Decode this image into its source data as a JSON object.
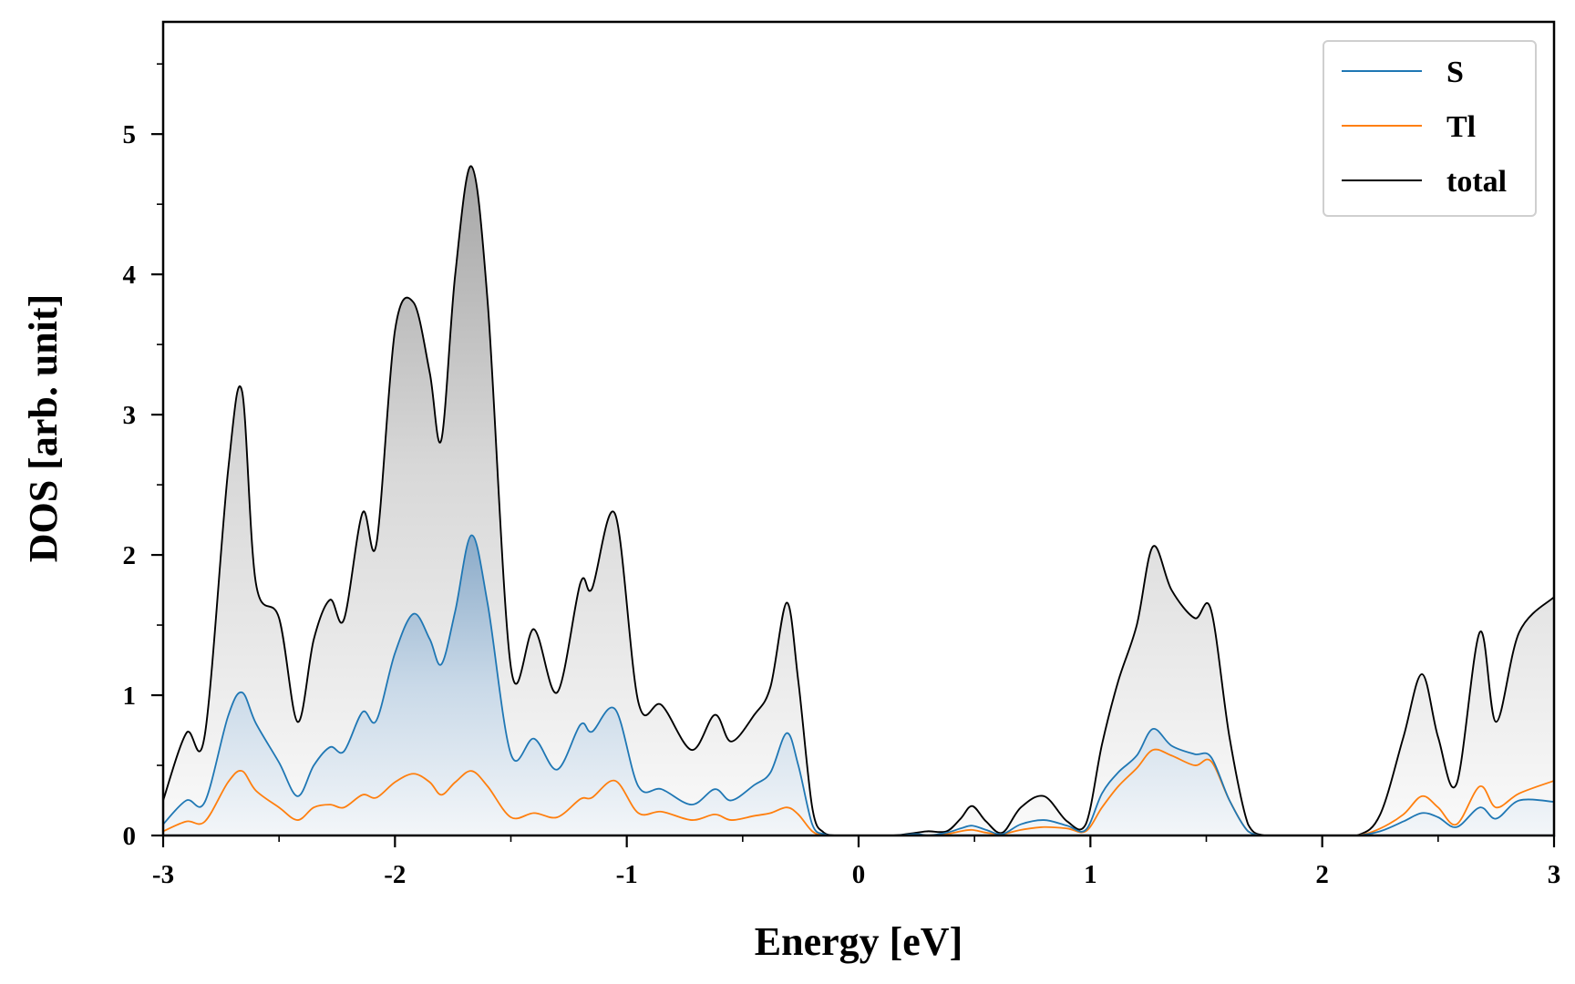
{
  "chart_data": {
    "type": "line",
    "title": "",
    "xlabel": "Energy [eV]",
    "ylabel": "DOS [arb. unit]",
    "xlim": [
      -3,
      3
    ],
    "ylim": [
      0,
      5.8
    ],
    "x_ticks": [
      -3,
      -2,
      -1,
      0,
      1,
      2,
      3
    ],
    "x_tick_labels": [
      "-3",
      "-2",
      "-1",
      "0",
      "1",
      "2",
      "3"
    ],
    "y_ticks": [
      0,
      1,
      2,
      3,
      4,
      5
    ],
    "y_tick_labels": [
      "0",
      "1",
      "2",
      "3",
      "4",
      "5"
    ],
    "legend_position": "top-right",
    "series": [
      {
        "name": "S",
        "color": "#1f77b4",
        "x": [
          -3.0,
          -2.9,
          -2.82,
          -2.72,
          -2.66,
          -2.6,
          -2.5,
          -2.42,
          -2.35,
          -2.28,
          -2.22,
          -2.14,
          -2.08,
          -2.0,
          -1.92,
          -1.85,
          -1.8,
          -1.74,
          -1.67,
          -1.6,
          -1.5,
          -1.4,
          -1.3,
          -1.2,
          -1.15,
          -1.05,
          -0.95,
          -0.85,
          -0.72,
          -0.62,
          -0.55,
          -0.45,
          -0.38,
          -0.31,
          -0.26,
          -0.2,
          -0.15,
          -0.1,
          0.0,
          0.15,
          0.25,
          0.3,
          0.38,
          0.44,
          0.49,
          0.55,
          0.62,
          0.7,
          0.8,
          0.9,
          0.98,
          1.05,
          1.12,
          1.2,
          1.27,
          1.35,
          1.45,
          1.52,
          1.6,
          1.68,
          1.75,
          1.85,
          2.0,
          2.15,
          2.25,
          2.35,
          2.43,
          2.5,
          2.58,
          2.68,
          2.75,
          2.85,
          3.0
        ],
        "values": [
          0.08,
          0.25,
          0.24,
          0.85,
          1.02,
          0.8,
          0.52,
          0.28,
          0.5,
          0.63,
          0.6,
          0.88,
          0.82,
          1.3,
          1.58,
          1.4,
          1.22,
          1.6,
          2.14,
          1.65,
          0.58,
          0.69,
          0.47,
          0.79,
          0.74,
          0.9,
          0.35,
          0.33,
          0.22,
          0.33,
          0.25,
          0.36,
          0.45,
          0.73,
          0.5,
          0.08,
          0.01,
          0.0,
          0.0,
          0.0,
          0.01,
          0.0,
          0.02,
          0.05,
          0.07,
          0.04,
          0.01,
          0.08,
          0.11,
          0.07,
          0.04,
          0.3,
          0.45,
          0.57,
          0.76,
          0.64,
          0.58,
          0.56,
          0.25,
          0.03,
          0.0,
          0.0,
          0.0,
          0.0,
          0.03,
          0.1,
          0.16,
          0.13,
          0.06,
          0.2,
          0.12,
          0.25,
          0.24
        ]
      },
      {
        "name": "Tl",
        "color": "#ff7f0e",
        "x": [
          -3.0,
          -2.9,
          -2.82,
          -2.72,
          -2.66,
          -2.6,
          -2.5,
          -2.42,
          -2.35,
          -2.28,
          -2.22,
          -2.14,
          -2.08,
          -2.0,
          -1.92,
          -1.85,
          -1.8,
          -1.74,
          -1.67,
          -1.6,
          -1.5,
          -1.4,
          -1.3,
          -1.2,
          -1.15,
          -1.05,
          -0.95,
          -0.85,
          -0.72,
          -0.62,
          -0.55,
          -0.45,
          -0.38,
          -0.31,
          -0.26,
          -0.2,
          -0.15,
          -0.1,
          0.0,
          0.15,
          0.25,
          0.3,
          0.38,
          0.44,
          0.49,
          0.55,
          0.62,
          0.7,
          0.8,
          0.9,
          0.98,
          1.05,
          1.12,
          1.2,
          1.27,
          1.35,
          1.45,
          1.52,
          1.6,
          1.68,
          1.75,
          1.85,
          2.0,
          2.15,
          2.25,
          2.35,
          2.43,
          2.5,
          2.58,
          2.68,
          2.75,
          2.85,
          3.0
        ],
        "values": [
          0.03,
          0.1,
          0.1,
          0.38,
          0.46,
          0.32,
          0.2,
          0.11,
          0.2,
          0.22,
          0.2,
          0.29,
          0.27,
          0.38,
          0.44,
          0.38,
          0.29,
          0.38,
          0.46,
          0.35,
          0.13,
          0.16,
          0.13,
          0.26,
          0.27,
          0.39,
          0.16,
          0.17,
          0.11,
          0.15,
          0.11,
          0.14,
          0.16,
          0.2,
          0.15,
          0.03,
          0.0,
          0.0,
          0.0,
          0.0,
          0.0,
          0.0,
          0.01,
          0.03,
          0.04,
          0.02,
          0.01,
          0.04,
          0.06,
          0.05,
          0.03,
          0.2,
          0.35,
          0.48,
          0.61,
          0.57,
          0.5,
          0.53,
          0.25,
          0.03,
          0.0,
          0.0,
          0.0,
          0.0,
          0.05,
          0.15,
          0.28,
          0.2,
          0.08,
          0.35,
          0.2,
          0.3,
          0.39
        ]
      },
      {
        "name": "total",
        "color": "#000000",
        "x": [
          -3.0,
          -2.9,
          -2.82,
          -2.72,
          -2.66,
          -2.6,
          -2.5,
          -2.42,
          -2.35,
          -2.28,
          -2.22,
          -2.14,
          -2.08,
          -2.0,
          -1.92,
          -1.85,
          -1.8,
          -1.74,
          -1.67,
          -1.6,
          -1.5,
          -1.4,
          -1.3,
          -1.2,
          -1.15,
          -1.05,
          -0.95,
          -0.85,
          -0.72,
          -0.62,
          -0.55,
          -0.45,
          -0.38,
          -0.31,
          -0.26,
          -0.2,
          -0.15,
          -0.1,
          0.0,
          0.15,
          0.25,
          0.3,
          0.38,
          0.44,
          0.49,
          0.55,
          0.62,
          0.7,
          0.8,
          0.9,
          0.98,
          1.05,
          1.12,
          1.2,
          1.27,
          1.35,
          1.45,
          1.52,
          1.6,
          1.68,
          1.75,
          1.85,
          2.0,
          2.15,
          2.25,
          2.35,
          2.43,
          2.5,
          2.58,
          2.68,
          2.75,
          2.85,
          3.0
        ],
        "values": [
          0.25,
          0.73,
          0.72,
          2.6,
          3.17,
          1.8,
          1.55,
          0.81,
          1.4,
          1.68,
          1.54,
          2.3,
          2.08,
          3.6,
          3.8,
          3.3,
          2.82,
          4.0,
          4.77,
          3.8,
          1.2,
          1.47,
          1.02,
          1.8,
          1.76,
          2.29,
          0.95,
          0.93,
          0.61,
          0.86,
          0.67,
          0.86,
          1.06,
          1.66,
          1.1,
          0.2,
          0.02,
          0.0,
          0.0,
          0.0,
          0.02,
          0.03,
          0.03,
          0.12,
          0.21,
          0.1,
          0.02,
          0.2,
          0.28,
          0.1,
          0.08,
          0.65,
          1.1,
          1.5,
          2.06,
          1.75,
          1.55,
          1.61,
          0.7,
          0.08,
          0.0,
          0.0,
          0.0,
          0.0,
          0.15,
          0.7,
          1.15,
          0.7,
          0.37,
          1.45,
          0.81,
          1.45,
          1.7
        ]
      }
    ]
  }
}
